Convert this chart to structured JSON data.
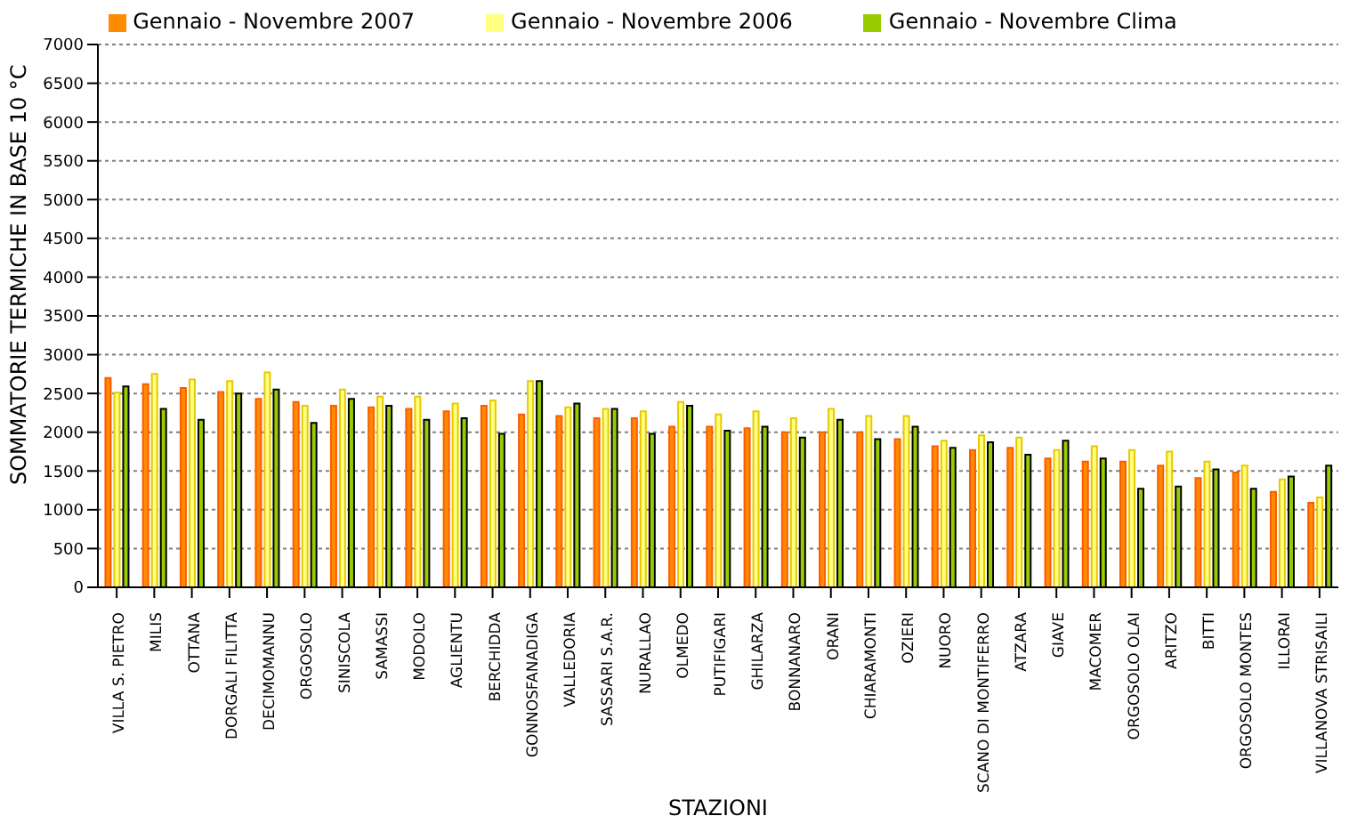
{
  "chart_data": {
    "type": "bar",
    "xlabel": "STAZIONI",
    "ylabel": "SOMMATORIE TERMICHE IN BASE 10 °C",
    "categories": [
      "VILLA S. PIETRO",
      "MILIS",
      "OTTANA",
      "DORGALI FILITTA",
      "DECIMOMANNU",
      "ORGOSOLO",
      "SINISCOLA",
      "SAMASSI",
      "MODOLO",
      "AGLIENTU",
      "BERCHIDDA",
      "GONNOSFANADIGA",
      "VALLEDORIA",
      "SASSARI S.A.R.",
      "NURALLAO",
      "OLMEDO",
      "PUTIFIGARI",
      "GHILARZA",
      "BONNANARO",
      "ORANI",
      "CHIARAMONTI",
      "OZIERI",
      "NUORO",
      "SCANO DI MONTIFERRO",
      "ATZARA",
      "GIAVE",
      "MACOMER",
      "ORGOSOLO OLAI",
      "ARITZO",
      "BITTI",
      "ORGOSOLO MONTES",
      "ILLORAI",
      "VILLANOVA STRISAILI"
    ],
    "series": [
      {
        "name": "Gennaio - Novembre 2007",
        "color": "#ff8c00",
        "values": [
          2700,
          2620,
          2570,
          2520,
          2430,
          2390,
          2340,
          2320,
          2300,
          2270,
          2340,
          2230,
          2210,
          2180,
          2180,
          2070,
          2070,
          2050,
          2000,
          2000,
          2000,
          1910,
          1820,
          1770,
          1800,
          1660,
          1620,
          1620,
          1570,
          1410,
          1480,
          1230,
          1090
        ]
      },
      {
        "name": "Gennaio - Novembre 2006",
        "color": "#ffff80",
        "values": [
          2510,
          2750,
          2680,
          2660,
          2770,
          2340,
          2550,
          2460,
          2460,
          2370,
          2410,
          2660,
          2320,
          2300,
          2270,
          2390,
          2230,
          2270,
          2180,
          2300,
          2210,
          2210,
          1890,
          1960,
          1930,
          1770,
          1820,
          1770,
          1750,
          1620,
          1570,
          1390,
          1160
        ]
      },
      {
        "name": "Gennaio - Novembre Clima",
        "color": "#99cc00",
        "values": [
          2590,
          2300,
          2160,
          2500,
          2550,
          2120,
          2430,
          2340,
          2160,
          2180,
          1980,
          2660,
          2370,
          2300,
          1980,
          2340,
          2020,
          2070,
          1930,
          2160,
          1910,
          2070,
          1800,
          1870,
          1710,
          1890,
          1660,
          1270,
          1300,
          1520,
          1270,
          1430,
          1570
        ]
      }
    ],
    "ylim": [
      0,
      7000
    ],
    "yticks": [
      0,
      500,
      1000,
      1500,
      2000,
      2500,
      3000,
      3500,
      4000,
      4500,
      5000,
      5500,
      6000,
      6500,
      7000
    ],
    "grid": "y",
    "legend": "top"
  }
}
